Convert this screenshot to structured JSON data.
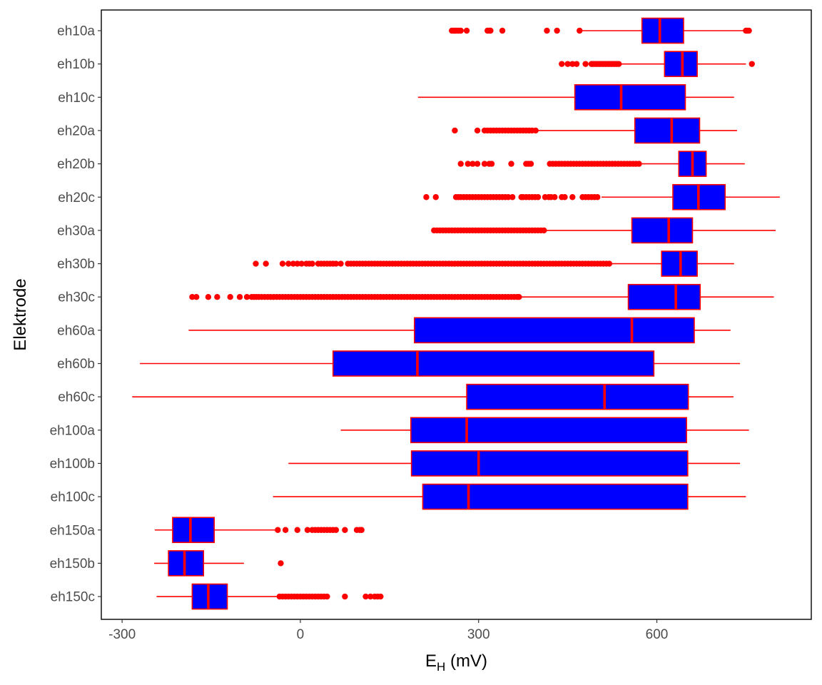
{
  "chart_data": {
    "type": "boxplot",
    "orientation": "horizontal",
    "title": "",
    "xlabel": {
      "main": "E",
      "sub": "H",
      "suffix": " (mV)"
    },
    "ylabel": "Elektrode",
    "xlim": [
      -335,
      860
    ],
    "xticks": [
      -300,
      0,
      300,
      600
    ],
    "xtick_labels": [
      "-300",
      "0",
      "300",
      "600"
    ],
    "grid": false,
    "legend": "none",
    "colors": {
      "box_fill": "#0000ff",
      "box_line": "#ff0000",
      "outlier": "#ff0000",
      "axis": "#000000",
      "tick_text": "#4d4d4d"
    },
    "categories": [
      "eh10a",
      "eh10b",
      "eh10c",
      "eh20a",
      "eh20b",
      "eh20c",
      "eh30a",
      "eh30b",
      "eh30c",
      "eh60a",
      "eh60b",
      "eh60c",
      "eh100a",
      "eh100b",
      "eh100c",
      "eh150a",
      "eh150b",
      "eh150c"
    ],
    "boxes": [
      {
        "name": "eh10a",
        "whisker_low": 470,
        "q1": 575,
        "median": 605,
        "q3": 645,
        "whisker_high": 750,
        "outliers": [
          255,
          258,
          260,
          262,
          265,
          267,
          270,
          280,
          315,
          318,
          320,
          340,
          415,
          432,
          470,
          750,
          752,
          755
        ]
      },
      {
        "name": "eh10b",
        "whisker_low": 540,
        "q1": 613,
        "median": 643,
        "q3": 668,
        "whisker_high": 750,
        "outliers": [
          440,
          450,
          458,
          465,
          480,
          490,
          492,
          495,
          498,
          500,
          503,
          505,
          508,
          510,
          513,
          515,
          518,
          520,
          523,
          525,
          528,
          530,
          533,
          536,
          760
        ]
      },
      {
        "name": "eh10c",
        "whisker_low": 198,
        "q1": 462,
        "median": 540,
        "q3": 648,
        "whisker_high": 730,
        "outliers": []
      },
      {
        "name": "eh20a",
        "whisker_low": 400,
        "q1": 563,
        "median": 625,
        "q3": 672,
        "whisker_high": 735,
        "outliers": [
          260,
          298,
          310,
          315,
          320,
          325,
          330,
          335,
          340,
          345,
          350,
          355,
          360,
          365,
          370,
          375,
          380,
          385,
          390,
          396
        ]
      },
      {
        "name": "eh20b",
        "whisker_low": 575,
        "q1": 637,
        "median": 660,
        "q3": 683,
        "whisker_high": 748,
        "outliers": [
          270,
          282,
          290,
          298,
          310,
          318,
          322,
          355,
          380,
          384,
          388,
          420,
          425,
          430,
          435,
          440,
          445,
          450,
          455,
          460,
          465,
          470,
          475,
          480,
          485,
          490,
          495,
          500,
          505,
          510,
          515,
          520,
          525,
          530,
          535,
          540,
          545,
          550,
          555,
          560,
          565,
          570
        ]
      },
      {
        "name": "eh20c",
        "whisker_low": 507,
        "q1": 627,
        "median": 670,
        "q3": 715,
        "whisker_high": 807,
        "outliers": [
          212,
          228,
          262,
          266,
          270,
          275,
          280,
          285,
          290,
          295,
          300,
          305,
          310,
          315,
          320,
          325,
          330,
          335,
          340,
          345,
          350,
          357,
          372,
          375,
          380,
          385,
          390,
          395,
          400,
          412,
          418,
          422,
          428,
          440,
          445,
          458,
          475,
          480,
          485,
          490,
          495,
          500
        ]
      },
      {
        "name": "eh30a",
        "whisker_low": 410,
        "q1": 558,
        "median": 620,
        "q3": 660,
        "whisker_high": 800,
        "outliers": [
          225,
          230,
          235,
          240,
          245,
          250,
          255,
          260,
          265,
          270,
          275,
          280,
          285,
          290,
          295,
          300,
          305,
          310,
          315,
          320,
          325,
          330,
          335,
          340,
          345,
          350,
          355,
          360,
          365,
          370,
          375,
          380,
          385,
          390,
          395,
          400,
          405,
          410
        ]
      },
      {
        "name": "eh30b",
        "whisker_low": 522,
        "q1": 608,
        "median": 640,
        "q3": 668,
        "whisker_high": 730,
        "outliers": [
          -75,
          -58,
          -30,
          -20,
          -12,
          -5,
          2,
          10,
          15,
          20,
          30,
          35,
          40,
          45,
          50,
          55,
          60,
          68,
          80,
          85,
          90,
          95,
          100,
          105,
          110,
          115,
          120,
          125,
          130,
          135,
          140,
          145,
          150,
          155,
          160,
          165,
          170,
          175,
          180,
          185,
          190,
          195,
          200,
          205,
          210,
          215,
          220,
          225,
          230,
          235,
          240,
          245,
          250,
          255,
          260,
          265,
          270,
          275,
          280,
          285,
          290,
          295,
          300,
          305,
          310,
          315,
          320,
          325,
          330,
          335,
          340,
          345,
          350,
          355,
          360,
          365,
          370,
          375,
          380,
          385,
          390,
          395,
          400,
          405,
          410,
          415,
          420,
          425,
          430,
          435,
          440,
          445,
          450,
          455,
          460,
          465,
          470,
          475,
          480,
          485,
          490,
          495,
          500,
          505,
          510,
          515,
          520
        ]
      },
      {
        "name": "eh30c",
        "whisker_low": 370,
        "q1": 552,
        "median": 632,
        "q3": 673,
        "whisker_high": 797,
        "outliers": [
          -182,
          -175,
          -155,
          -140,
          -118,
          -102,
          -90,
          -82,
          -78,
          -74,
          -70,
          -65,
          -60,
          -55,
          -50,
          -45,
          -40,
          -35,
          -30,
          -25,
          -20,
          -15,
          -10,
          -5,
          0,
          5,
          10,
          15,
          20,
          25,
          30,
          35,
          40,
          45,
          50,
          55,
          60,
          65,
          70,
          75,
          80,
          85,
          90,
          95,
          100,
          105,
          110,
          115,
          120,
          125,
          130,
          135,
          140,
          145,
          150,
          155,
          160,
          165,
          170,
          175,
          180,
          185,
          190,
          195,
          200,
          205,
          210,
          215,
          220,
          225,
          230,
          235,
          240,
          245,
          250,
          255,
          260,
          265,
          270,
          275,
          280,
          285,
          290,
          295,
          300,
          305,
          310,
          315,
          320,
          325,
          330,
          335,
          340,
          345,
          350,
          355,
          360,
          365,
          368
        ]
      },
      {
        "name": "eh60a",
        "whisker_low": -188,
        "q1": 192,
        "median": 558,
        "q3": 663,
        "whisker_high": 724,
        "outliers": []
      },
      {
        "name": "eh60b",
        "whisker_low": -270,
        "q1": 55,
        "median": 197,
        "q3": 595,
        "whisker_high": 740,
        "outliers": []
      },
      {
        "name": "eh60c",
        "whisker_low": -283,
        "q1": 280,
        "median": 512,
        "q3": 653,
        "whisker_high": 729,
        "outliers": []
      },
      {
        "name": "eh100a",
        "whisker_low": 68,
        "q1": 186,
        "median": 280,
        "q3": 650,
        "whisker_high": 755,
        "outliers": []
      },
      {
        "name": "eh100b",
        "whisker_low": -20,
        "q1": 187,
        "median": 300,
        "q3": 652,
        "whisker_high": 740,
        "outliers": []
      },
      {
        "name": "eh100c",
        "whisker_low": -46,
        "q1": 206,
        "median": 283,
        "q3": 652,
        "whisker_high": 750,
        "outliers": []
      },
      {
        "name": "eh150a",
        "whisker_low": -245,
        "q1": -215,
        "median": -185,
        "q3": -145,
        "whisker_high": -42,
        "outliers": [
          -38,
          -25,
          -5,
          12,
          20,
          25,
          30,
          35,
          40,
          45,
          50,
          55,
          60,
          75,
          95,
          100,
          103
        ]
      },
      {
        "name": "eh150b",
        "whisker_low": -246,
        "q1": -222,
        "median": -195,
        "q3": -163,
        "whisker_high": -95,
        "outliers": [
          -33
        ]
      },
      {
        "name": "eh150c",
        "whisker_low": -242,
        "q1": -182,
        "median": -155,
        "q3": -123,
        "whisker_high": -38,
        "outliers": [
          -35,
          -30,
          -25,
          -20,
          -15,
          -10,
          -5,
          0,
          5,
          10,
          15,
          20,
          25,
          30,
          35,
          40,
          45,
          75,
          110,
          118,
          125,
          130,
          135
        ]
      }
    ]
  }
}
